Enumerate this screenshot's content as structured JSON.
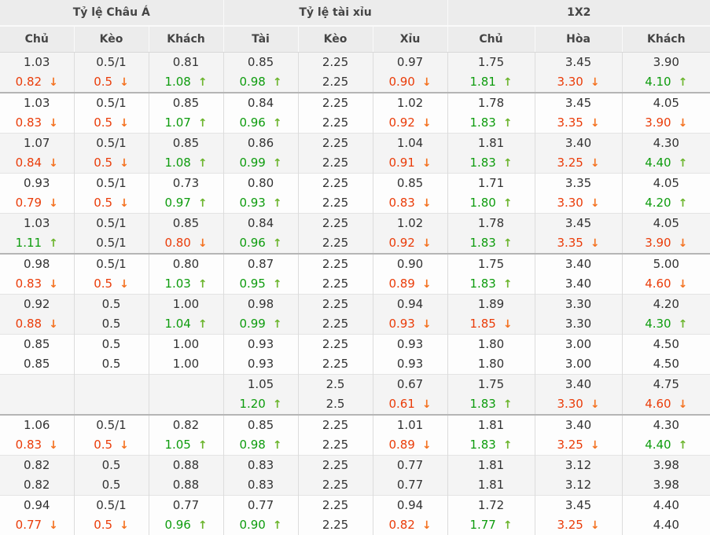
{
  "colors": {
    "header_bg": "#ececec",
    "row_alt_bg": "#f4f4f4",
    "up_text": "#0e9c0e",
    "up_arrow": "#6cb52d",
    "down_text": "#ea3c09",
    "down_arrow": "#f4711f",
    "thick_separator": "#b5b5b5"
  },
  "icons": {
    "up": "up-arrow-icon",
    "down": "down-arrow-icon"
  },
  "table": {
    "groups": [
      {
        "title": "Tỷ lệ Châu Á",
        "columns": [
          "Chủ",
          "Kèo",
          "Khách"
        ]
      },
      {
        "title": "Tỷ lệ tài xỉu",
        "columns": [
          "Tài",
          "Kèo",
          "Xỉu"
        ]
      },
      {
        "title": "1X2",
        "columns": [
          "Chủ",
          "Hòa",
          "Khách"
        ]
      }
    ],
    "rows": [
      {
        "group_end": true,
        "cells": [
          [
            "1.03",
            "0.82",
            "down"
          ],
          [
            "0.5/1",
            "0.5",
            "down"
          ],
          [
            "0.81",
            "1.08",
            "up"
          ],
          [
            "0.85",
            "0.98",
            "up"
          ],
          [
            "2.25",
            "2.25",
            "none"
          ],
          [
            "0.97",
            "0.90",
            "down"
          ],
          [
            "1.75",
            "1.81",
            "up"
          ],
          [
            "3.45",
            "3.30",
            "down"
          ],
          [
            "3.90",
            "4.10",
            "up"
          ]
        ]
      },
      {
        "group_end": false,
        "cells": [
          [
            "1.03",
            "0.83",
            "down"
          ],
          [
            "0.5/1",
            "0.5",
            "down"
          ],
          [
            "0.85",
            "1.07",
            "up"
          ],
          [
            "0.84",
            "0.96",
            "up"
          ],
          [
            "2.25",
            "2.25",
            "none"
          ],
          [
            "1.02",
            "0.92",
            "down"
          ],
          [
            "1.78",
            "1.83",
            "up"
          ],
          [
            "3.45",
            "3.35",
            "down"
          ],
          [
            "4.05",
            "3.90",
            "down"
          ]
        ]
      },
      {
        "group_end": false,
        "cells": [
          [
            "1.07",
            "0.84",
            "down"
          ],
          [
            "0.5/1",
            "0.5",
            "down"
          ],
          [
            "0.85",
            "1.08",
            "up"
          ],
          [
            "0.86",
            "0.99",
            "up"
          ],
          [
            "2.25",
            "2.25",
            "none"
          ],
          [
            "1.04",
            "0.91",
            "down"
          ],
          [
            "1.81",
            "1.83",
            "up"
          ],
          [
            "3.40",
            "3.25",
            "down"
          ],
          [
            "4.30",
            "4.40",
            "up"
          ]
        ]
      },
      {
        "group_end": false,
        "cells": [
          [
            "0.93",
            "0.79",
            "down"
          ],
          [
            "0.5/1",
            "0.5",
            "down"
          ],
          [
            "0.73",
            "0.97",
            "up"
          ],
          [
            "0.80",
            "0.93",
            "up"
          ],
          [
            "2.25",
            "2.25",
            "none"
          ],
          [
            "0.85",
            "0.83",
            "down"
          ],
          [
            "1.71",
            "1.80",
            "up"
          ],
          [
            "3.35",
            "3.30",
            "down"
          ],
          [
            "4.05",
            "4.20",
            "up"
          ]
        ]
      },
      {
        "group_end": true,
        "cells": [
          [
            "1.03",
            "1.11",
            "up"
          ],
          [
            "0.5/1",
            "0.5/1",
            "none"
          ],
          [
            "0.85",
            "0.80",
            "down"
          ],
          [
            "0.84",
            "0.96",
            "up"
          ],
          [
            "2.25",
            "2.25",
            "none"
          ],
          [
            "1.02",
            "0.92",
            "down"
          ],
          [
            "1.78",
            "1.83",
            "up"
          ],
          [
            "3.45",
            "3.35",
            "down"
          ],
          [
            "4.05",
            "3.90",
            "down"
          ]
        ]
      },
      {
        "group_end": false,
        "cells": [
          [
            "0.98",
            "0.83",
            "down"
          ],
          [
            "0.5/1",
            "0.5",
            "down"
          ],
          [
            "0.80",
            "1.03",
            "up"
          ],
          [
            "0.87",
            "0.95",
            "up"
          ],
          [
            "2.25",
            "2.25",
            "none"
          ],
          [
            "0.90",
            "0.89",
            "down"
          ],
          [
            "1.75",
            "1.83",
            "up"
          ],
          [
            "3.40",
            "3.40",
            "none"
          ],
          [
            "5.00",
            "4.60",
            "down"
          ]
        ]
      },
      {
        "group_end": false,
        "cells": [
          [
            "0.92",
            "0.88",
            "down"
          ],
          [
            "0.5",
            "0.5",
            "none"
          ],
          [
            "1.00",
            "1.04",
            "up"
          ],
          [
            "0.98",
            "0.99",
            "up"
          ],
          [
            "2.25",
            "2.25",
            "none"
          ],
          [
            "0.94",
            "0.93",
            "down"
          ],
          [
            "1.89",
            "1.85",
            "down"
          ],
          [
            "3.30",
            "3.30",
            "none"
          ],
          [
            "4.20",
            "4.30",
            "up"
          ]
        ]
      },
      {
        "group_end": false,
        "cells": [
          [
            "0.85",
            "0.85",
            "none"
          ],
          [
            "0.5",
            "0.5",
            "none"
          ],
          [
            "1.00",
            "1.00",
            "none"
          ],
          [
            "0.93",
            "0.93",
            "none"
          ],
          [
            "2.25",
            "2.25",
            "none"
          ],
          [
            "0.93",
            "0.93",
            "none"
          ],
          [
            "1.80",
            "1.80",
            "none"
          ],
          [
            "3.00",
            "3.00",
            "none"
          ],
          [
            "4.50",
            "4.50",
            "none"
          ]
        ]
      },
      {
        "group_end": true,
        "cells": [
          [
            "",
            "",
            "none"
          ],
          [
            "",
            "",
            "none"
          ],
          [
            "",
            "",
            "none"
          ],
          [
            "1.05",
            "1.20",
            "up"
          ],
          [
            "2.5",
            "2.5",
            "none"
          ],
          [
            "0.67",
            "0.61",
            "down"
          ],
          [
            "1.75",
            "1.83",
            "up"
          ],
          [
            "3.40",
            "3.30",
            "down"
          ],
          [
            "4.75",
            "4.60",
            "down"
          ]
        ]
      },
      {
        "group_end": false,
        "cells": [
          [
            "1.06",
            "0.83",
            "down"
          ],
          [
            "0.5/1",
            "0.5",
            "down"
          ],
          [
            "0.82",
            "1.05",
            "up"
          ],
          [
            "0.85",
            "0.98",
            "up"
          ],
          [
            "2.25",
            "2.25",
            "none"
          ],
          [
            "1.01",
            "0.89",
            "down"
          ],
          [
            "1.81",
            "1.83",
            "up"
          ],
          [
            "3.40",
            "3.25",
            "down"
          ],
          [
            "4.30",
            "4.40",
            "up"
          ]
        ]
      },
      {
        "group_end": false,
        "cells": [
          [
            "0.82",
            "0.82",
            "none"
          ],
          [
            "0.5",
            "0.5",
            "none"
          ],
          [
            "0.88",
            "0.88",
            "none"
          ],
          [
            "0.83",
            "0.83",
            "none"
          ],
          [
            "2.25",
            "2.25",
            "none"
          ],
          [
            "0.77",
            "0.77",
            "none"
          ],
          [
            "1.81",
            "1.81",
            "none"
          ],
          [
            "3.12",
            "3.12",
            "none"
          ],
          [
            "3.98",
            "3.98",
            "none"
          ]
        ]
      },
      {
        "group_end": false,
        "cells": [
          [
            "0.94",
            "0.77",
            "down"
          ],
          [
            "0.5/1",
            "0.5",
            "down"
          ],
          [
            "0.77",
            "0.96",
            "up"
          ],
          [
            "0.77",
            "0.90",
            "up"
          ],
          [
            "2.25",
            "2.25",
            "none"
          ],
          [
            "0.94",
            "0.82",
            "down"
          ],
          [
            "1.72",
            "1.77",
            "up"
          ],
          [
            "3.45",
            "3.25",
            "down"
          ],
          [
            "4.40",
            "4.40",
            "none"
          ]
        ]
      }
    ]
  }
}
